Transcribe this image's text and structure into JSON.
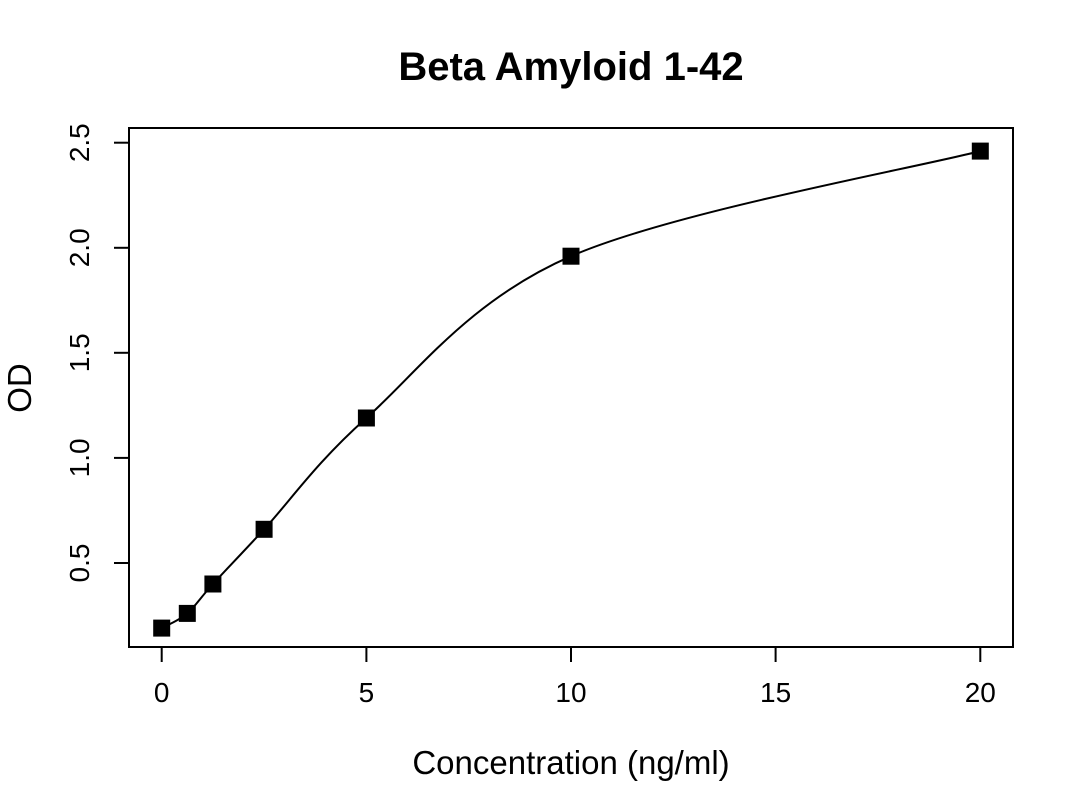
{
  "figure": {
    "background": "#ffffff",
    "foreground": "#000000"
  },
  "chart_data": {
    "type": "scatter",
    "title": "Beta Amyloid 1-42",
    "xlabel": "Concentration (ng/ml)",
    "ylabel": "OD",
    "series": [
      {
        "name": "standard-curve",
        "marker": "filled-square",
        "line": "4pl-fit-curve",
        "x": [
          0,
          0.625,
          1.25,
          2.5,
          5,
          10,
          20
        ],
        "y": [
          0.19,
          0.26,
          0.4,
          0.66,
          1.19,
          1.96,
          2.46
        ]
      }
    ],
    "x_ticks": [
      0,
      5,
      10,
      15,
      20
    ],
    "x_tick_labels": [
      "0",
      "5",
      "10",
      "15",
      "20"
    ],
    "y_ticks": [
      0.5,
      1.0,
      1.5,
      2.0,
      2.5
    ],
    "y_tick_labels": [
      "0.5",
      "1.0",
      "1.5",
      "2.0",
      "2.5"
    ],
    "xlim": [
      -0.8,
      20.8
    ],
    "ylim": [
      0.1,
      2.57
    ],
    "grid": false,
    "legend": "none",
    "colors": {
      "curve": "#000000",
      "marker": "#000000",
      "axis": "#000000",
      "background": "#ffffff"
    }
  }
}
